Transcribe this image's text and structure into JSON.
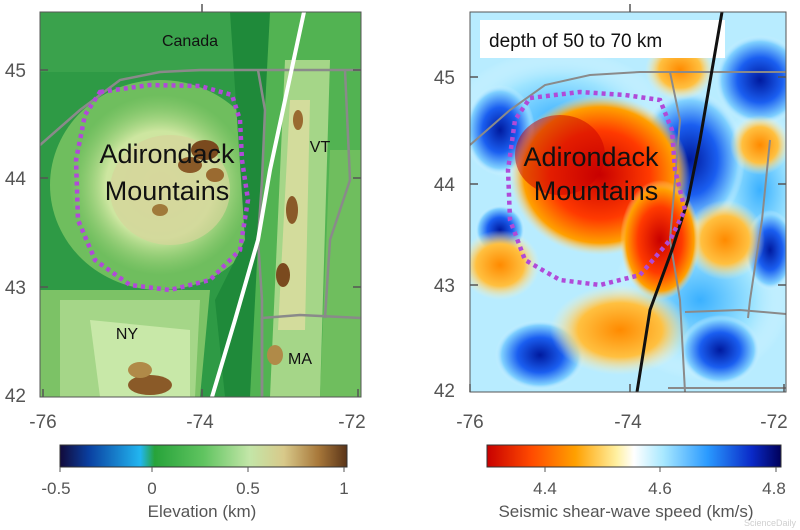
{
  "left_map": {
    "places": {
      "canada": "Canada",
      "vt": "VT",
      "ny": "NY",
      "ma": "MA"
    },
    "region_line1": "Adirondack",
    "region_line2": "Mountains",
    "lat_ticks": [
      "45",
      "44",
      "43",
      "42"
    ],
    "lon_ticks": [
      "-76",
      "-74",
      "-72"
    ],
    "colorbar": {
      "label": "Elevation (km)",
      "ticks": [
        "-0.5",
        "0",
        "0.5",
        "1"
      ],
      "colors": [
        "#120a3a",
        "#0a3fa0",
        "#22b6f0",
        "#27a33a",
        "#60c460",
        "#c3e6a8",
        "#d8c98a",
        "#a8783a",
        "#5a3418"
      ]
    }
  },
  "right_map": {
    "title": "depth of 50 to 70 km",
    "region_line1": "Adirondack",
    "region_line2": "Mountains",
    "lat_ticks": [
      "45",
      "44",
      "43",
      "42"
    ],
    "lon_ticks": [
      "-76",
      "-74",
      "-72"
    ],
    "colorbar": {
      "label": "Seismic shear-wave speed (km/s)",
      "ticks": [
        "4.4",
        "4.6",
        "4.8"
      ],
      "colors": [
        "#c80000",
        "#ff4a00",
        "#ffa000",
        "#fff0a0",
        "#ffffff",
        "#a8e8ff",
        "#2a9aff",
        "#0a2ac8",
        "#00005a"
      ]
    }
  },
  "watermark": "ScienceDaily"
}
